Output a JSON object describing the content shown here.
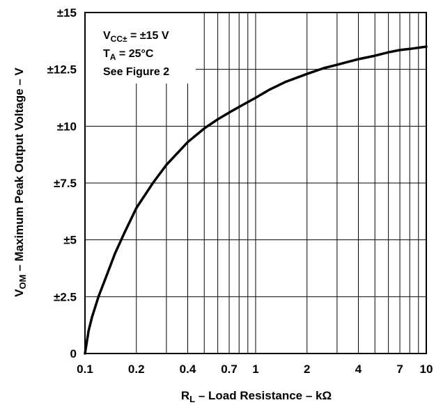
{
  "chart_data": {
    "type": "line",
    "title": "",
    "x_scale": "log",
    "xlim": [
      0.1,
      10
    ],
    "ylim": [
      0,
      15
    ],
    "x_ticks": [
      {
        "value": 0.1,
        "label": "0.1"
      },
      {
        "value": 0.2,
        "label": "0.2"
      },
      {
        "value": 0.4,
        "label": "0.4"
      },
      {
        "value": 0.7,
        "label": "0.7"
      },
      {
        "value": 1,
        "label": "1"
      },
      {
        "value": 2,
        "label": "2"
      },
      {
        "value": 4,
        "label": "4"
      },
      {
        "value": 7,
        "label": "7"
      },
      {
        "value": 10,
        "label": "10"
      }
    ],
    "y_ticks": [
      {
        "value": 0,
        "label": "0"
      },
      {
        "value": 2.5,
        "label": "±2.5"
      },
      {
        "value": 5,
        "label": "±5"
      },
      {
        "value": 7.5,
        "label": "±7.5"
      },
      {
        "value": 10,
        "label": "±10"
      },
      {
        "value": 12.5,
        "label": "±12.5"
      },
      {
        "value": 15,
        "label": "±15"
      }
    ],
    "xlabel": {
      "main": "R",
      "sub": "L",
      "rest": " – Load Resistance – kΩ"
    },
    "ylabel": {
      "main": "V",
      "sub": "OM",
      "rest": " – Maximum Peak Output Voltage – V"
    },
    "annotations": {
      "line1": {
        "main": "V",
        "sub": "CC±",
        "rest": " = ±15 V"
      },
      "line2": {
        "main": "T",
        "sub": "A",
        "rest": " = 25°C"
      },
      "line3": "See Figure 2"
    },
    "grid": true,
    "series": [
      {
        "x": [
          0.1,
          0.105,
          0.11,
          0.12,
          0.135,
          0.15,
          0.17,
          0.2,
          0.25,
          0.3,
          0.4,
          0.5,
          0.6,
          0.7,
          0.8,
          1,
          1.2,
          1.5,
          2,
          2.5,
          3,
          4,
          5,
          6,
          7,
          8,
          10
        ],
        "y": [
          0,
          1.0,
          1.6,
          2.5,
          3.5,
          4.4,
          5.3,
          6.4,
          7.5,
          8.3,
          9.3,
          9.9,
          10.3,
          10.6,
          10.85,
          11.25,
          11.6,
          11.95,
          12.3,
          12.55,
          12.7,
          12.95,
          13.1,
          13.25,
          13.35,
          13.4,
          13.5
        ]
      }
    ]
  }
}
